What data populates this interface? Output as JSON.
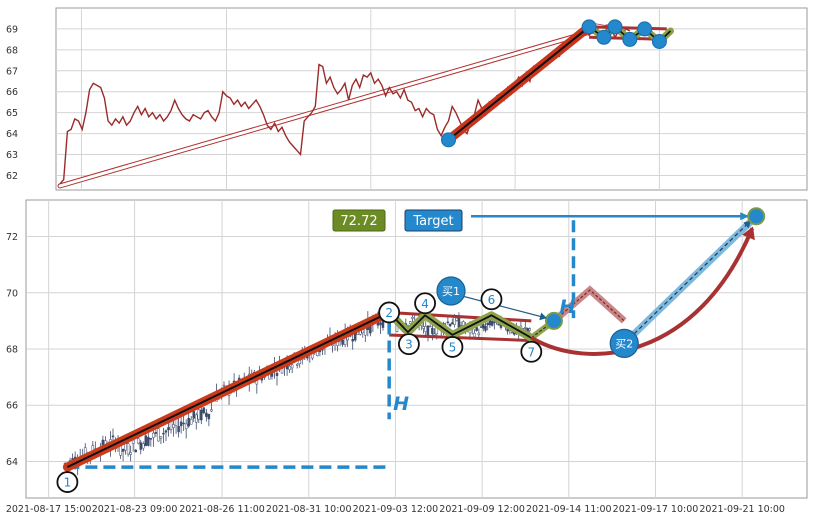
{
  "chart_data": [
    {
      "type": "line",
      "panel": "overview",
      "ylim": [
        61.4,
        70.0
      ],
      "y_ticks": [
        62,
        63,
        64,
        65,
        66,
        67,
        68,
        69
      ],
      "x_domain": [
        0,
        100
      ],
      "grid": true,
      "series": [
        {
          "color": "#9b2b2b",
          "points": [
            [
              0,
              61.6
            ],
            [
              0.5,
              61.8
            ],
            [
              1,
              64.1
            ],
            [
              1.5,
              64.2
            ],
            [
              2,
              64.7
            ],
            [
              2.5,
              64.6
            ],
            [
              3,
              64.2
            ],
            [
              3.5,
              65.0
            ],
            [
              4,
              66.1
            ],
            [
              4.5,
              66.4
            ],
            [
              5,
              66.3
            ],
            [
              5.5,
              66.2
            ],
            [
              6,
              65.7
            ],
            [
              6.5,
              64.6
            ],
            [
              7,
              64.4
            ],
            [
              7.5,
              64.7
            ],
            [
              8,
              64.5
            ],
            [
              8.5,
              64.8
            ],
            [
              9,
              64.4
            ],
            [
              9.5,
              64.6
            ],
            [
              10,
              65.0
            ],
            [
              10.5,
              65.3
            ],
            [
              11,
              64.9
            ],
            [
              11.5,
              65.2
            ],
            [
              12,
              64.8
            ],
            [
              12.5,
              65.0
            ],
            [
              13,
              64.7
            ],
            [
              13.5,
              64.9
            ],
            [
              14,
              64.6
            ],
            [
              14.5,
              64.8
            ],
            [
              15,
              65.1
            ],
            [
              15.5,
              65.6
            ],
            [
              16,
              65.2
            ],
            [
              16.5,
              64.9
            ],
            [
              17,
              64.7
            ],
            [
              17.5,
              64.6
            ],
            [
              18,
              64.9
            ],
            [
              18.5,
              64.8
            ],
            [
              19,
              64.7
            ],
            [
              19.5,
              65.0
            ],
            [
              20,
              65.1
            ],
            [
              20.5,
              64.8
            ],
            [
              21,
              64.6
            ],
            [
              21.5,
              65.0
            ],
            [
              22,
              66.0
            ],
            [
              22.5,
              65.8
            ],
            [
              23,
              65.7
            ],
            [
              23.5,
              65.4
            ],
            [
              24,
              65.6
            ],
            [
              24.5,
              65.3
            ],
            [
              25,
              65.5
            ],
            [
              25.5,
              65.2
            ],
            [
              26,
              65.4
            ],
            [
              26.5,
              65.6
            ],
            [
              27,
              65.3
            ],
            [
              27.5,
              64.9
            ],
            [
              28,
              64.4
            ],
            [
              28.5,
              64.2
            ],
            [
              29,
              64.5
            ],
            [
              29.5,
              64.1
            ],
            [
              30,
              64.3
            ],
            [
              30.5,
              63.9
            ],
            [
              31,
              63.6
            ],
            [
              31.5,
              63.4
            ],
            [
              32,
              63.2
            ],
            [
              32.5,
              63.0
            ],
            [
              33,
              64.6
            ],
            [
              33.5,
              64.8
            ],
            [
              34,
              65.0
            ],
            [
              34.5,
              65.3
            ],
            [
              35,
              67.3
            ],
            [
              35.5,
              67.2
            ],
            [
              36,
              66.4
            ],
            [
              36.5,
              66.7
            ],
            [
              37,
              66.2
            ],
            [
              37.5,
              65.9
            ],
            [
              38,
              66.1
            ],
            [
              38.5,
              66.4
            ],
            [
              39,
              65.6
            ],
            [
              39.5,
              66.3
            ],
            [
              40,
              66.6
            ],
            [
              40.5,
              66.2
            ],
            [
              41,
              66.8
            ],
            [
              41.5,
              66.7
            ],
            [
              42,
              66.9
            ],
            [
              42.5,
              66.4
            ],
            [
              43,
              66.6
            ],
            [
              43.5,
              66.3
            ],
            [
              44,
              65.8
            ],
            [
              44.5,
              66.2
            ],
            [
              45,
              65.9
            ],
            [
              45.5,
              66.0
            ],
            [
              46,
              65.7
            ],
            [
              46.5,
              66.1
            ],
            [
              47,
              65.6
            ],
            [
              47.5,
              65.5
            ],
            [
              48,
              65.1
            ],
            [
              48.5,
              65.2
            ],
            [
              49,
              64.8
            ],
            [
              49.5,
              65.2
            ],
            [
              50,
              65.0
            ],
            [
              50.5,
              64.9
            ],
            [
              51,
              64.2
            ],
            [
              51.5,
              63.9
            ],
            [
              52,
              64.3
            ],
            [
              52.5,
              64.6
            ],
            [
              53,
              65.3
            ],
            [
              53.5,
              65.0
            ],
            [
              54,
              64.6
            ],
            [
              54.5,
              64.2
            ],
            [
              55,
              64.0
            ],
            [
              55.5,
              64.5
            ],
            [
              56,
              64.9
            ],
            [
              56.5,
              65.6
            ],
            [
              57,
              65.2
            ],
            [
              57.5,
              64.9
            ],
            [
              58,
              65.5
            ],
            [
              58.5,
              65.3
            ],
            [
              59,
              65.8
            ],
            [
              59.5,
              65.9
            ],
            [
              60,
              65.6
            ],
            [
              60.5,
              66.2
            ],
            [
              61,
              65.9
            ],
            [
              61.5,
              66.4
            ],
            [
              62,
              66.7
            ],
            [
              62.5,
              66.3
            ],
            [
              63,
              66.9
            ],
            [
              63.5,
              66.5
            ],
            [
              64,
              67.2
            ],
            [
              64.5,
              67.0
            ],
            [
              65,
              67.4
            ],
            [
              65.5,
              67.3
            ],
            [
              66,
              67.6
            ],
            [
              66.5,
              67.5
            ],
            [
              67,
              67.9
            ],
            [
              67.5,
              67.7
            ],
            [
              68,
              68.2
            ],
            [
              68.5,
              68.1
            ],
            [
              69,
              68.4
            ],
            [
              69.5,
              68.3
            ],
            [
              70,
              68.6
            ],
            [
              70.5,
              68.8
            ],
            [
              71,
              69.0
            ],
            [
              71.5,
              68.7
            ],
            [
              72,
              68.9
            ],
            [
              72.5,
              69.1
            ],
            [
              73,
              68.8
            ],
            [
              73.5,
              68.6
            ],
            [
              74,
              68.9
            ],
            [
              74.5,
              69.0
            ],
            [
              75,
              68.6
            ],
            [
              75.5,
              68.9
            ],
            [
              76,
              68.8
            ],
            [
              76.5,
              69.0
            ],
            [
              77,
              68.9
            ]
          ]
        }
      ],
      "uptrend": [
        [
          52.5,
          63.7
        ],
        [
          71.5,
          69.1
        ]
      ],
      "pattern": [
        [
          71.5,
          69.1
        ],
        [
          73.5,
          68.6
        ],
        [
          75.0,
          69.1
        ],
        [
          77.0,
          68.5
        ],
        [
          79.0,
          69.0
        ],
        [
          81.0,
          68.4
        ],
        [
          82.5,
          68.9
        ]
      ],
      "channel": {
        "upper": [
          [
            71.5,
            69.1
          ],
          [
            82.0,
            69.0
          ]
        ],
        "lower": [
          [
            71.5,
            68.6
          ],
          [
            82.0,
            68.5
          ]
        ]
      },
      "markers": [
        [
          52.5,
          63.7
        ],
        [
          71.5,
          69.1
        ],
        [
          73.5,
          68.6
        ],
        [
          75.0,
          69.1
        ],
        [
          77.0,
          68.5
        ],
        [
          79.0,
          69.0
        ],
        [
          81.0,
          68.4
        ]
      ],
      "projection": {
        "from": [
          0,
          61.5
        ],
        "to": [
          74.0,
          69.1
        ]
      }
    },
    {
      "type": "candlestick",
      "panel": "detail",
      "ylim": [
        62.7,
        73.3
      ],
      "y_ticks": [
        64,
        66,
        68,
        70,
        72
      ],
      "x_tick_labels": [
        "2021-08-17 15:00",
        "2021-08-23 09:00",
        "2021-08-26 11:00",
        "2021-08-31 10:00",
        "2021-09-03 12:00",
        "2021-09-09 12:00",
        "2021-09-14 11:00",
        "2021-09-17 10:00",
        "2021-09-21 10:00"
      ],
      "x_domain": [
        0,
        100
      ],
      "grid": true,
      "uptrend": [
        [
          5.3,
          63.8
        ],
        [
          46.5,
          69.3
        ]
      ],
      "baseline": {
        "y": 63.8,
        "x_range": [
          5.3,
          46.5
        ]
      },
      "pattern_points": [
        {
          "label": "1",
          "x": 5.3,
          "y": 63.8
        },
        {
          "label": "2",
          "x": 46.5,
          "y": 69.3
        },
        {
          "label": "3",
          "x": 48.9,
          "y": 68.6
        },
        {
          "label": "4",
          "x": 51.1,
          "y": 69.2
        },
        {
          "label": "5",
          "x": 54.6,
          "y": 68.5
        },
        {
          "label": "6",
          "x": 59.6,
          "y": 69.2
        },
        {
          "label": "7",
          "x": 64.7,
          "y": 68.4
        }
      ],
      "breakout": {
        "label": "买1",
        "x": 67.6,
        "y": 69.0
      },
      "retest": [
        [
          67.6,
          69.0
        ],
        [
          72.2,
          70.1
        ],
        [
          76.6,
          69.0
        ]
      ],
      "buy2": {
        "label": "买2",
        "x": 76.6,
        "y": 68.2
      },
      "target": {
        "label": "Target",
        "value": "72.72",
        "y": 72.72,
        "x": 93.5
      },
      "channel": {
        "upper": [
          [
            46.5,
            69.3
          ],
          [
            64.7,
            69.0
          ]
        ],
        "lower": [
          [
            46.5,
            68.5
          ],
          [
            64.7,
            68.3
          ]
        ]
      },
      "height_label": "H"
    }
  ]
}
